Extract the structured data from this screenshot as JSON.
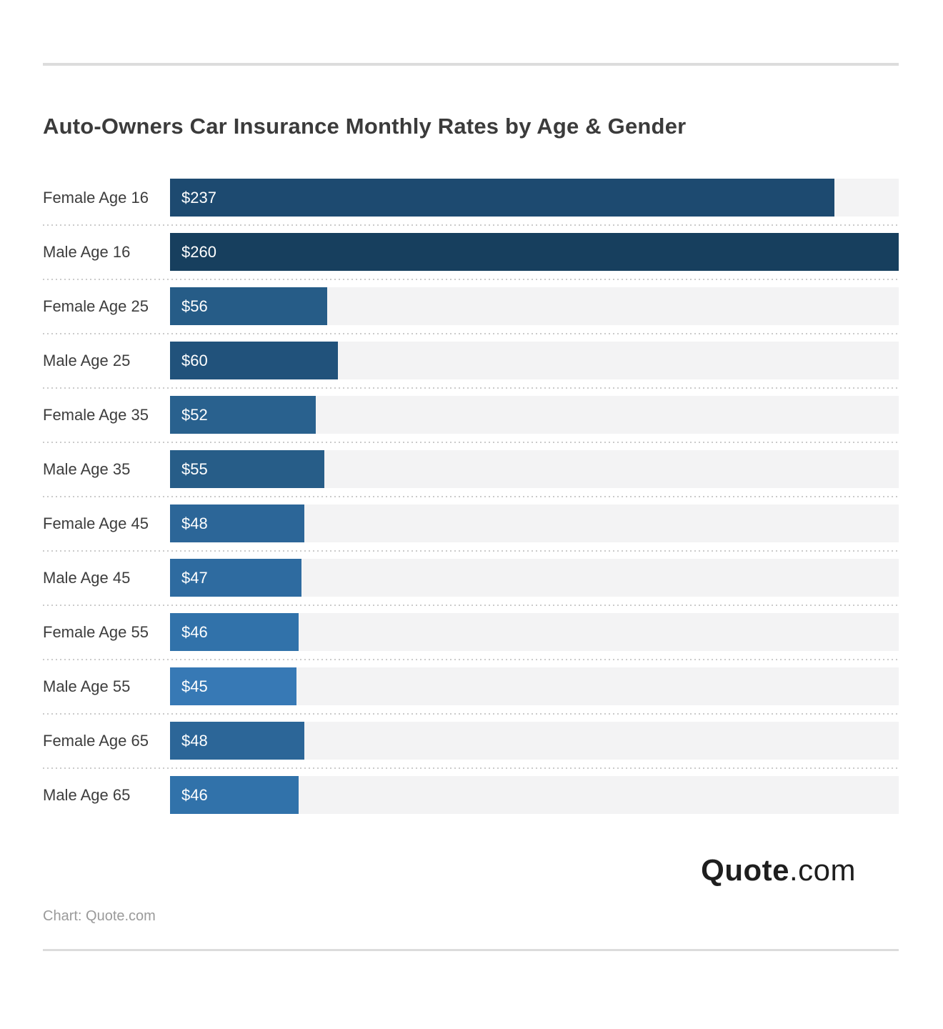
{
  "title": "Auto-Owners Car Insurance Monthly Rates by Age & Gender",
  "chart_data": {
    "type": "bar",
    "orientation": "horizontal",
    "title": "Auto-Owners Car Insurance Monthly Rates by Age & Gender",
    "categories": [
      "Female Age 16",
      "Male Age 16",
      "Female Age 25",
      "Male Age 25",
      "Female Age 35",
      "Male Age 35",
      "Female Age 45",
      "Male Age 45",
      "Female Age 55",
      "Male Age 55",
      "Female Age 65",
      "Male Age 65"
    ],
    "values": [
      237,
      260,
      56,
      60,
      52,
      55,
      48,
      47,
      46,
      45,
      48,
      46
    ],
    "value_labels": [
      "$237",
      "$260",
      "$56",
      "$60",
      "$52",
      "$55",
      "$48",
      "$47",
      "$46",
      "$45",
      "$48",
      "$46"
    ],
    "bar_colors": [
      "#1d4a70",
      "#173f5e",
      "#265c87",
      "#21527b",
      "#29618e",
      "#275d88",
      "#2c6698",
      "#2e6ba0",
      "#3172aa",
      "#3779b5",
      "#2c6698",
      "#3172aa"
    ],
    "xlabel": "",
    "ylabel": "",
    "xlim": [
      0,
      260
    ],
    "grid": false,
    "legend": false,
    "track_color": "#f3f3f4",
    "separator_style": "dotted"
  },
  "branding": {
    "logo_bold": "Quote",
    "logo_light": ".com"
  },
  "footer": {
    "source": "Chart: Quote.com"
  },
  "colors": {
    "title_text": "#3b3b3b",
    "label_text": "#3d3d3d",
    "value_text": "#ffffff",
    "rule": "#dcdcdc",
    "dotted_separator": "#cbcbcb",
    "source_text": "#9a9a9a",
    "logo_text": "#1e1e1e"
  }
}
